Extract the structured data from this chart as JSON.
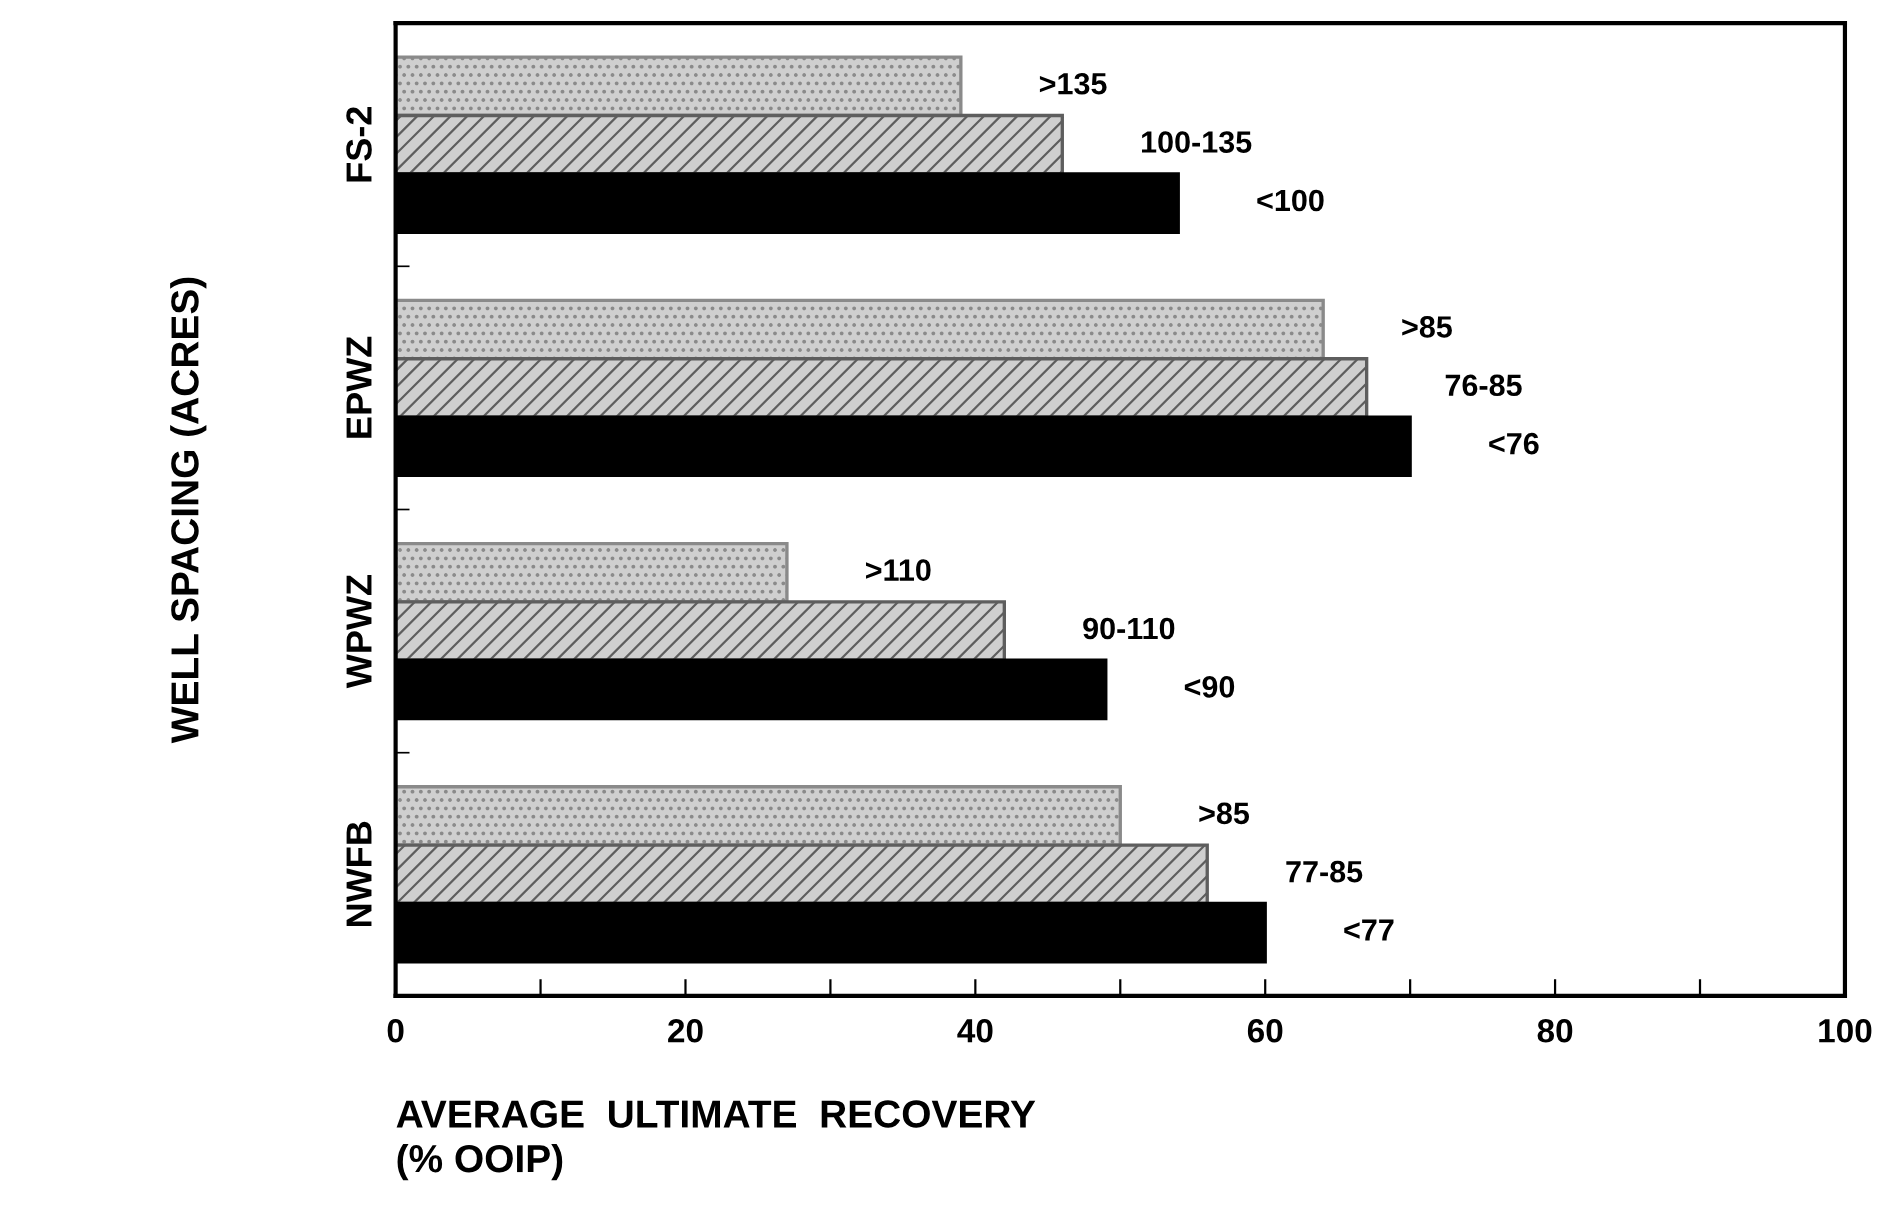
{
  "chart_data": {
    "type": "bar",
    "orientation": "horizontal",
    "xlabel": "AVERAGE  ULTIMATE  RECOVERY\n(% OOIP)",
    "ylabel": "WELL SPACING (ACRES)",
    "categories": [
      "FS-2",
      "EPWZ",
      "WPWZ",
      "NWFB"
    ],
    "series": [
      {
        "color": "#8a8a8a",
        "values": [
          39,
          64,
          27,
          50
        ],
        "value_labels": [
          ">135",
          ">85",
          ">110",
          ">85"
        ]
      },
      {
        "color": "#5e5e5e",
        "values": [
          46,
          67,
          42,
          56
        ],
        "value_labels": [
          "100-135",
          "76-85",
          "90-110",
          "77-85"
        ]
      },
      {
        "color": "#000000",
        "values": [
          54,
          70,
          49,
          60
        ],
        "value_labels": [
          "<100",
          "<76",
          "<90",
          "<77"
        ]
      }
    ],
    "xlim": [
      0,
      100
    ],
    "xticks": [
      0,
      {
        "value": 10,
        "label": null
      },
      20,
      {
        "value": 30,
        "label": null
      },
      40,
      {
        "value": 50,
        "label": null
      },
      60,
      {
        "value": 70,
        "label": null
      },
      80,
      {
        "value": 90,
        "label": null
      },
      100
    ],
    "grid": false
  }
}
